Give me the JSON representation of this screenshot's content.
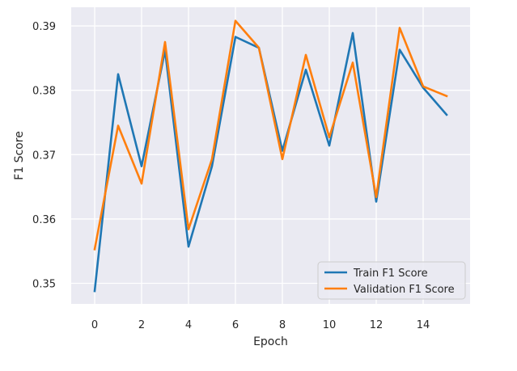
{
  "chart_data": {
    "type": "line",
    "xlabel": "Epoch",
    "ylabel": "F1 Score",
    "xlim": [
      -1,
      16
    ],
    "ylim": [
      0.3468,
      0.3929
    ],
    "xticks": [
      0,
      2,
      4,
      6,
      8,
      10,
      12,
      14
    ],
    "xtick_labels": [
      "0",
      "2",
      "4",
      "6",
      "8",
      "10",
      "12",
      "14"
    ],
    "yticks": [
      0.35,
      0.36,
      0.37,
      0.38,
      0.39
    ],
    "ytick_labels": [
      "0.35",
      "0.36",
      "0.37",
      "0.38",
      "0.39"
    ],
    "grid": true,
    "legend_position": "lower-right",
    "x": [
      0,
      1,
      2,
      3,
      4,
      5,
      6,
      7,
      8,
      9,
      10,
      11,
      12,
      13,
      14,
      15
    ],
    "series": [
      {
        "name": "Train F1 Score",
        "color": "#1f77b4",
        "values": [
          0.3488,
          0.3825,
          0.3682,
          0.3862,
          0.3557,
          0.3682,
          0.3883,
          0.3866,
          0.3706,
          0.3832,
          0.3714,
          0.3889,
          0.3627,
          0.3863,
          0.3804,
          0.3762
        ]
      },
      {
        "name": "Validation F1 Score",
        "color": "#ff7f0e",
        "values": [
          0.3553,
          0.3745,
          0.3655,
          0.3875,
          0.3584,
          0.3693,
          0.3908,
          0.3866,
          0.3693,
          0.3855,
          0.3727,
          0.3843,
          0.3634,
          0.3897,
          0.3806,
          0.3791
        ]
      }
    ]
  },
  "colors": {
    "plot_background": "#eaeaf2",
    "grid": "#ffffff",
    "text": "#262626"
  }
}
